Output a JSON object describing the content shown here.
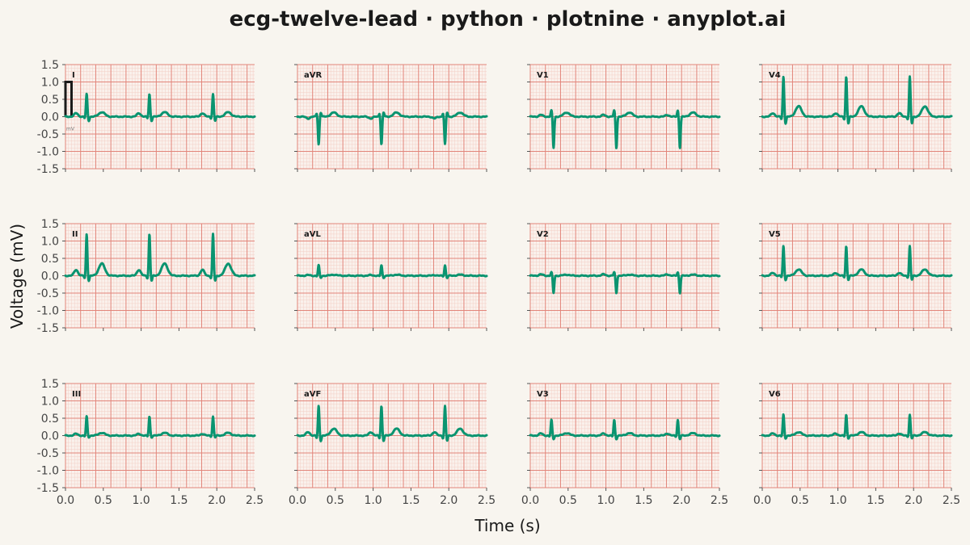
{
  "chart_data": {
    "type": "line",
    "title": "ecg-twelve-lead · python · plotnine · anyplot.ai",
    "xlabel": "Time (s)",
    "ylabel": "Voltage (mV)",
    "xlim": [
      0,
      2.5
    ],
    "ylim": [
      -1.5,
      1.5
    ],
    "x_ticks": [
      0.0,
      0.5,
      1.0,
      1.5,
      2.0,
      2.5
    ],
    "x_tick_labels": [
      "0.0",
      "0.5",
      "1.0",
      "1.5",
      "2.0",
      "2.5"
    ],
    "y_ticks": [
      1.5,
      1.0,
      0.5,
      0.0,
      -0.5,
      -1.0,
      -1.5
    ],
    "y_tick_labels": [
      "1.5",
      "1.0",
      "0.5",
      "0.0",
      "-0.5",
      "-1.0",
      "-1.5"
    ],
    "calibration_label": "mV",
    "beat_times": [
      0.28,
      1.11,
      1.95
    ],
    "colors": {
      "trace": "#0A9470",
      "grid_major": "#E2857A",
      "grid_minor": "#F3CFC6",
      "panel_bg": "#FAF1EC",
      "page_bg": "#F8F5EF"
    },
    "leads": [
      {
        "name": "I",
        "row": 0,
        "col": 0,
        "P": 0.1,
        "Q": -0.05,
        "R": 0.65,
        "S": -0.12,
        "T": 0.13
      },
      {
        "name": "aVR",
        "row": 0,
        "col": 1,
        "P": -0.05,
        "Q": 0.1,
        "R": -0.8,
        "S": 0.12,
        "T": 0.12
      },
      {
        "name": "V1",
        "row": 0,
        "col": 2,
        "P": 0.05,
        "Q": 0.0,
        "R": 0.18,
        "S": -0.9,
        "T": 0.12
      },
      {
        "name": "V4",
        "row": 0,
        "col": 3,
        "P": 0.1,
        "Q": -0.08,
        "R": 1.15,
        "S": -0.2,
        "T": 0.3
      },
      {
        "name": "II",
        "row": 1,
        "col": 0,
        "P": 0.17,
        "Q": -0.08,
        "R": 1.2,
        "S": -0.15,
        "T": 0.35
      },
      {
        "name": "aVL",
        "row": 1,
        "col": 1,
        "P": 0.02,
        "Q": -0.02,
        "R": 0.3,
        "S": -0.06,
        "T": 0.03
      },
      {
        "name": "V2",
        "row": 1,
        "col": 2,
        "P": 0.04,
        "Q": 0.0,
        "R": 0.1,
        "S": -0.5,
        "T": 0.03
      },
      {
        "name": "V5",
        "row": 1,
        "col": 3,
        "P": 0.08,
        "Q": -0.05,
        "R": 0.85,
        "S": -0.12,
        "T": 0.18
      },
      {
        "name": "III",
        "row": 2,
        "col": 0,
        "P": 0.05,
        "Q": -0.03,
        "R": 0.55,
        "S": -0.05,
        "T": 0.08
      },
      {
        "name": "aVF",
        "row": 2,
        "col": 1,
        "P": 0.1,
        "Q": -0.08,
        "R": 0.85,
        "S": -0.15,
        "T": 0.2
      },
      {
        "name": "V3",
        "row": 2,
        "col": 2,
        "P": 0.06,
        "Q": -0.03,
        "R": 0.45,
        "S": -0.1,
        "T": 0.07
      },
      {
        "name": "V6",
        "row": 2,
        "col": 3,
        "P": 0.06,
        "Q": -0.03,
        "R": 0.6,
        "S": -0.08,
        "T": 0.1
      }
    ]
  }
}
